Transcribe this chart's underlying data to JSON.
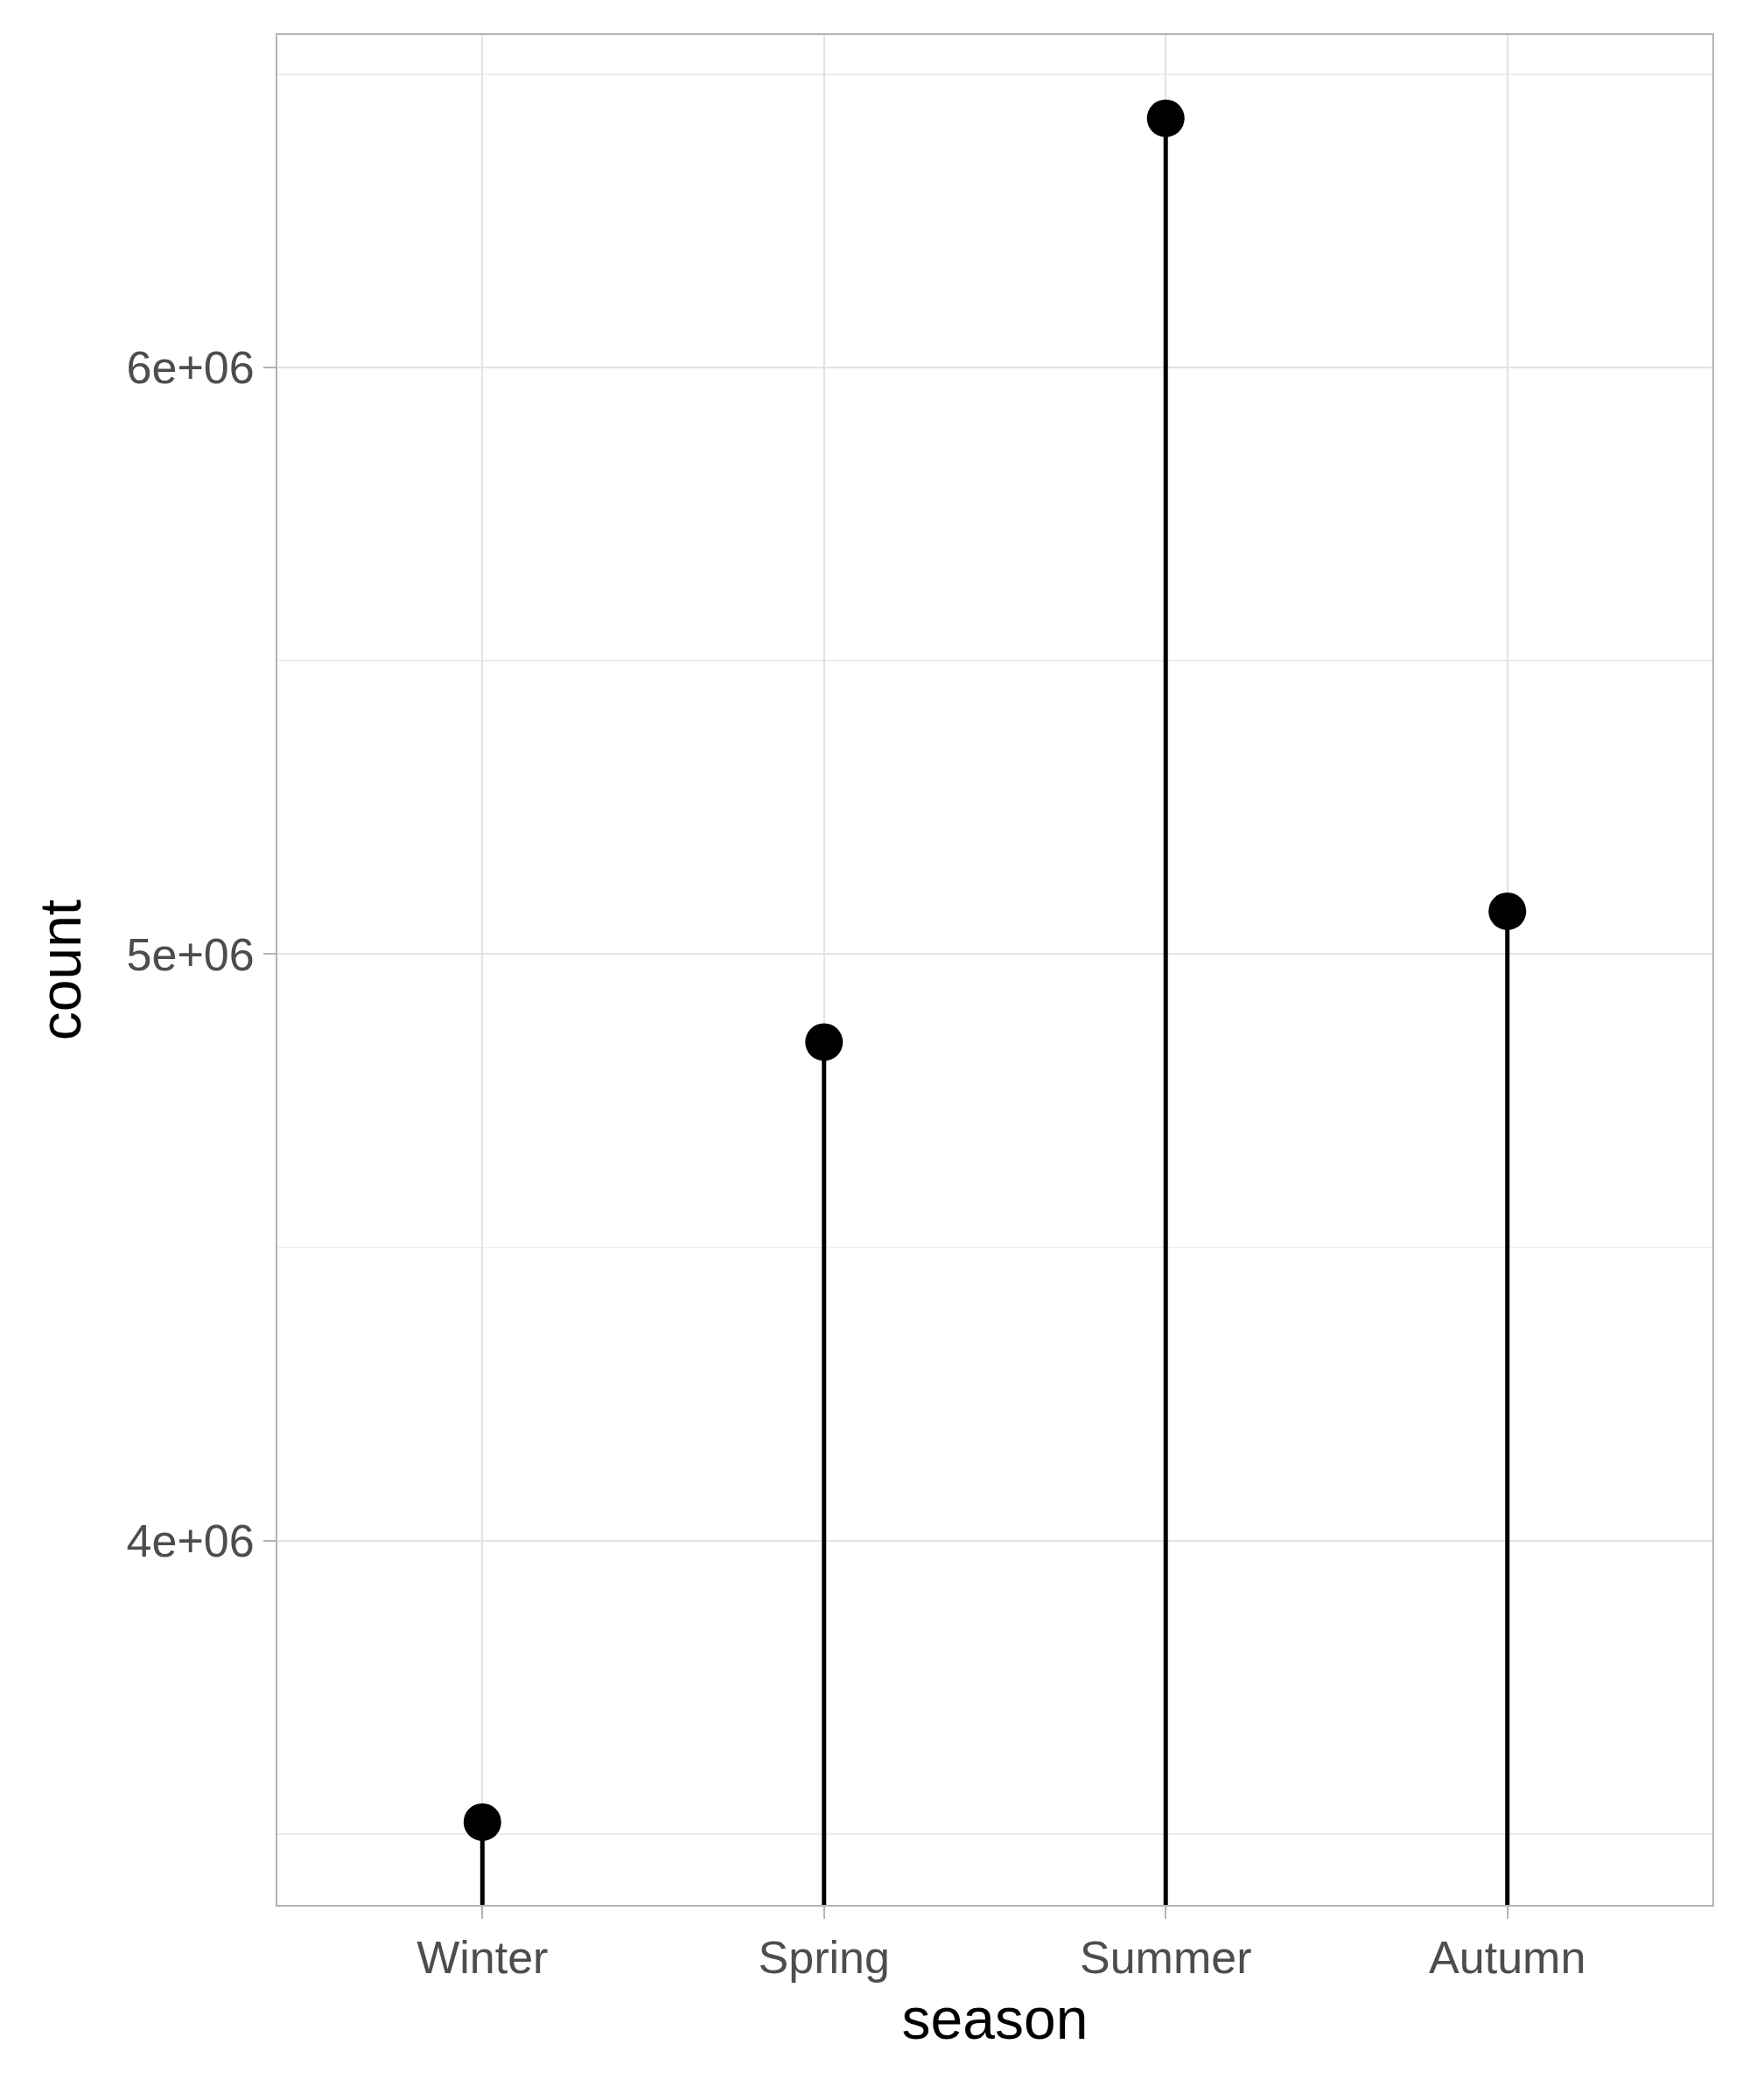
{
  "chart_data": {
    "type": "lollipop",
    "xlabel": "season",
    "ylabel": "count",
    "categories": [
      "Winter",
      "Spring",
      "Summer",
      "Autumn"
    ],
    "series": [
      {
        "color": "#000000",
        "values": [
          3520000,
          4850000,
          6425000,
          5073000
        ]
      }
    ],
    "ylim": [
      3379000,
      6567000
    ],
    "yticks": [
      {
        "value": 3500000,
        "label": null
      },
      {
        "value": 4000000,
        "label": "4e+06"
      },
      {
        "value": 4500000,
        "label": null
      },
      {
        "value": 5000000,
        "label": "5e+06"
      },
      {
        "value": 5500000,
        "label": null
      },
      {
        "value": 6000000,
        "label": "6e+06"
      },
      {
        "value": 6500000,
        "label": null
      }
    ],
    "grid": true,
    "marker": "circle"
  }
}
